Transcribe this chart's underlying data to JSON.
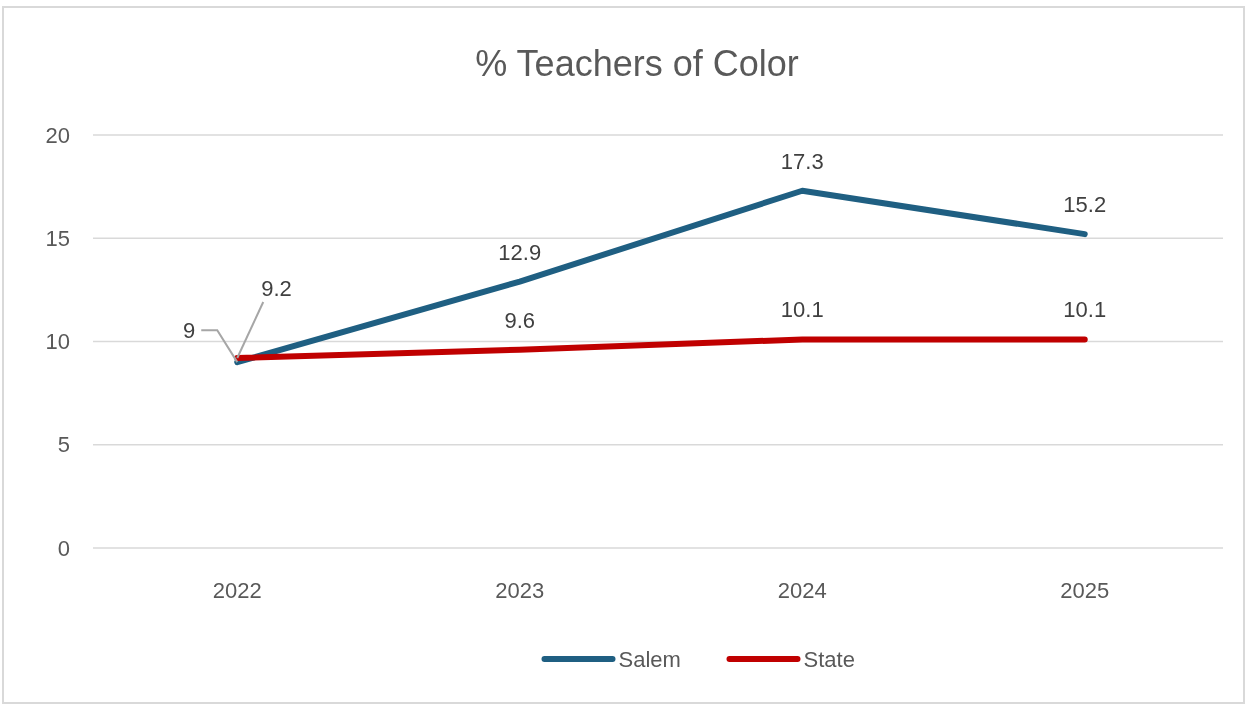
{
  "chart_data": {
    "type": "line",
    "title": "% Teachers of Color",
    "categories": [
      "2022",
      "2023",
      "2024",
      "2025"
    ],
    "series": [
      {
        "name": "Salem",
        "color": "#1f5f82",
        "values": [
          9,
          12.9,
          17.3,
          15.2
        ]
      },
      {
        "name": "State",
        "color": "#c00000",
        "values": [
          9.2,
          9.6,
          10.1,
          10.1
        ]
      }
    ],
    "ylim": [
      0,
      20
    ],
    "yticks": [
      0,
      5,
      10,
      15,
      20
    ],
    "grid": "y",
    "legend": "bottom",
    "data_labels": true,
    "marker": "none",
    "line_style": "solid"
  }
}
